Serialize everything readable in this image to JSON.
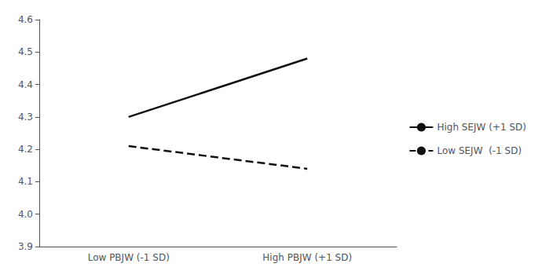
{
  "chart_data": {
    "type": "line",
    "categories": [
      "Low PBJW (-1 SD)",
      "High PBJW (+1 SD)"
    ],
    "series": [
      {
        "name": "High SEJW (+1 SD)",
        "color": "#111111",
        "line_style": "solid",
        "values": [
          4.3,
          4.48
        ]
      },
      {
        "name": "Low SEJW  (-1 SD)",
        "color": "#111111",
        "line_style": "dashed",
        "values": [
          4.21,
          4.14
        ]
      }
    ],
    "ylim": [
      3.9,
      4.6
    ],
    "yticks": [
      3.9,
      {
        "value": 4.0,
        "label": "4.0"
      },
      4.1,
      4.2,
      4.3,
      4.4,
      4.5,
      4.6
    ],
    "grid": false,
    "legend": "right"
  }
}
